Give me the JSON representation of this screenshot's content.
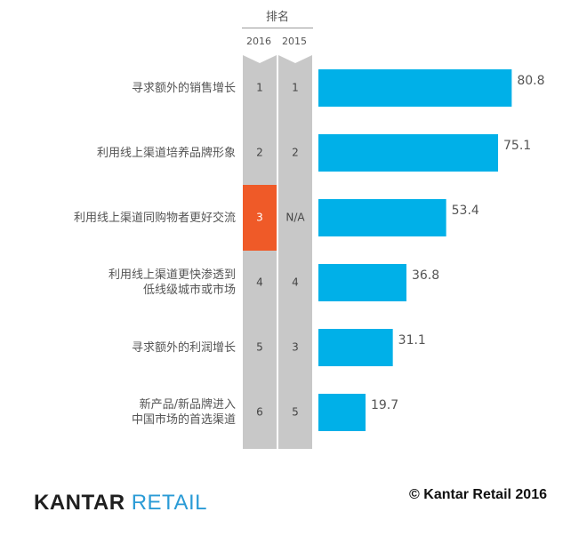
{
  "header": {
    "rank_title": "排名",
    "col_2016": "2016",
    "col_2015": "2015"
  },
  "colors": {
    "bar": "#00B0E8",
    "column": "#C8C8C8",
    "highlight": "#EF5A28",
    "text": "#555555"
  },
  "chart_data": {
    "type": "bar",
    "orientation": "horizontal",
    "categories": [
      [
        "寻求额外的销售增长"
      ],
      [
        "利用线上渠道培养品牌形象"
      ],
      [
        "利用线上渠道同购物者更好交流"
      ],
      [
        "利用线上渠道更快渗透到",
        "低线级城市或市场"
      ],
      [
        "寻求额外的利润增长"
      ],
      [
        "新产品/新品牌进入",
        "中国市场的首选渠道"
      ]
    ],
    "values": [
      80.8,
      75.1,
      53.4,
      36.8,
      31.1,
      19.7
    ],
    "value_labels": [
      "80.8",
      "75.1",
      "53.4",
      "36.8",
      "31.1",
      "19.7"
    ],
    "rank_2016": [
      "1",
      "2",
      "3",
      "4",
      "5",
      "6"
    ],
    "rank_2015": [
      "1",
      "2",
      "N/A",
      "4",
      "3",
      "5"
    ],
    "highlight_index": 2,
    "xlim": [
      0,
      100
    ]
  },
  "footer": {
    "logo_kantar": "KANTAR",
    "logo_retail": "RETAIL",
    "copyright": "© Kantar Retail 2016"
  }
}
